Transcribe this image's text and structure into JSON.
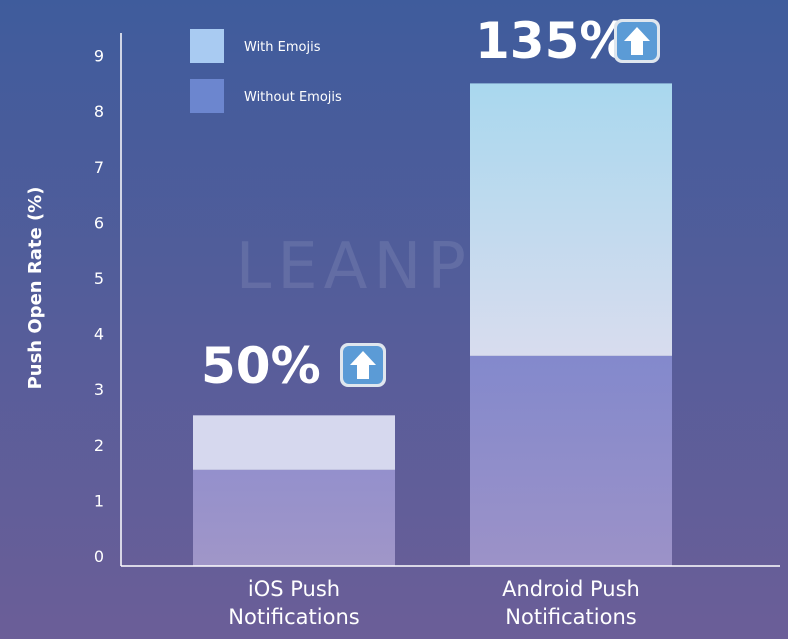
{
  "chart_data": {
    "type": "bar",
    "stacked": true,
    "categories": [
      "iOS Push Notifications",
      "Android Push Notifications"
    ],
    "category_lines": [
      [
        "iOS Push",
        "Notifications"
      ],
      [
        "Android Push",
        "Notifications"
      ]
    ],
    "series": [
      {
        "name": "Without Emojis",
        "values": [
          1.55,
          3.6
        ],
        "color": "#8d88c8"
      },
      {
        "name": "With Emojis",
        "values": [
          0.98,
          4.9
        ],
        "color": "#c4d8f0"
      }
    ],
    "totals": [
      2.53,
      8.5
    ],
    "annotations": [
      "50%",
      "135%"
    ],
    "ylabel": "Push Open Rate (%)",
    "yticks": [
      0,
      1,
      2,
      3,
      4,
      5,
      6,
      7,
      8,
      9
    ],
    "ylim": [
      0,
      9.3
    ],
    "legend": [
      {
        "label": "With Emojis",
        "color": "#a9cbf2"
      },
      {
        "label": "Without Emojis",
        "color": "#6c86cf"
      }
    ],
    "legend_position": "top-left",
    "watermark": "LEANPLUM",
    "grid": false,
    "annotation_icon": "up-arrow-icon"
  },
  "colors": {
    "bg_top": "#3f5c9c",
    "bg_bottom": "#6b5e98",
    "axis": "#ffffff",
    "icon_bg": "#5b9bd6"
  }
}
